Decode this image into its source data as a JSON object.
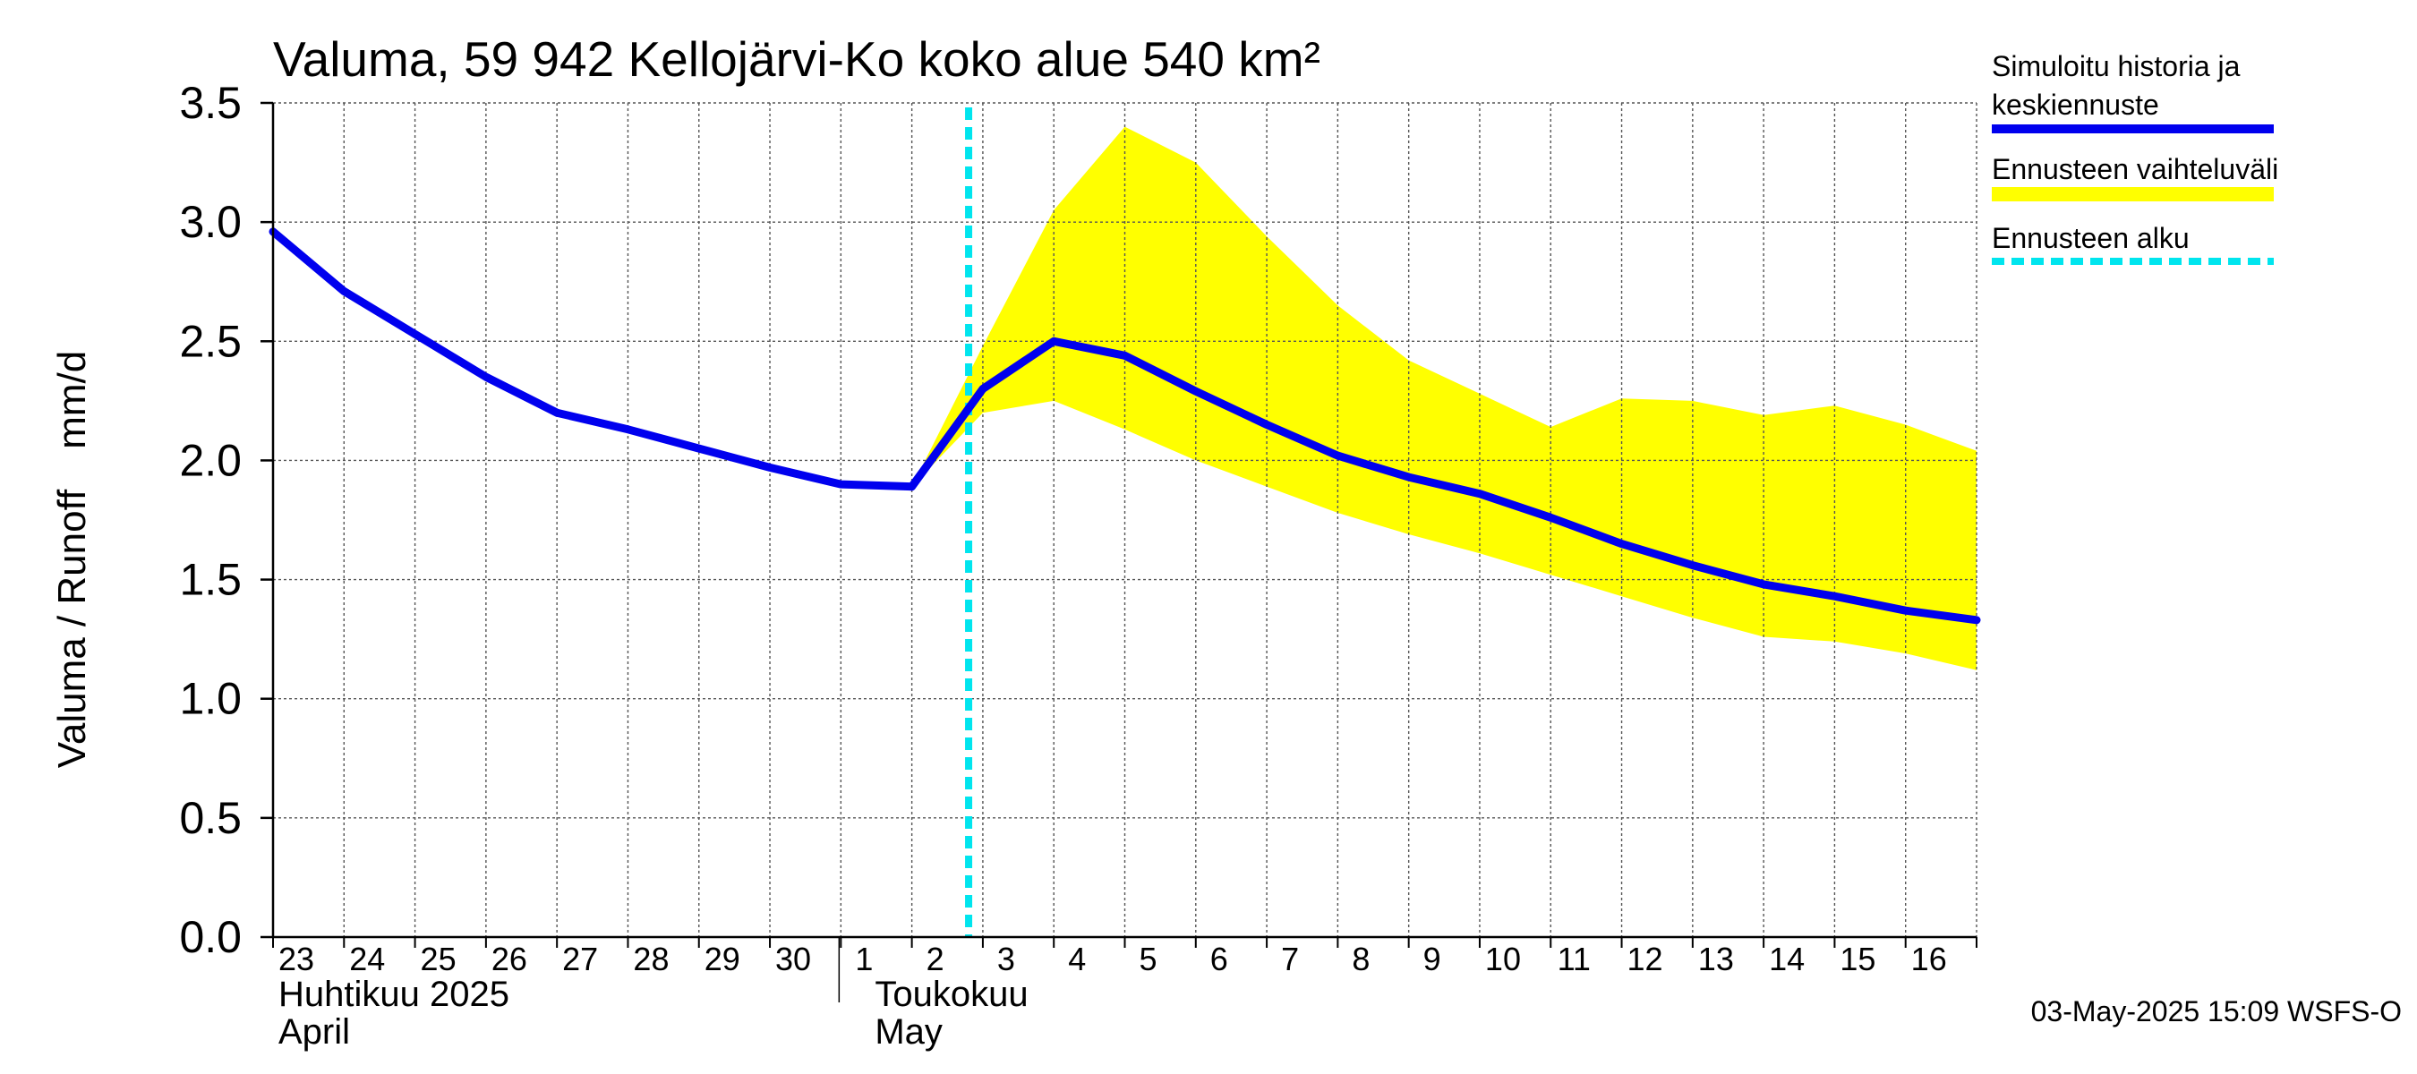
{
  "chart_data": {
    "type": "line",
    "title": "Valuma, 59 942 Kellojärvi-Ko koko alue 540 km²",
    "ylabel_fi": "Valuma / Runoff",
    "ylabel_unit": "mm/d",
    "ylim": [
      0,
      3.5
    ],
    "yticks": [
      "0.0",
      "0.5",
      "1.0",
      "1.5",
      "2.0",
      "2.5",
      "3.0",
      "3.5"
    ],
    "x_days": [
      "23",
      "24",
      "25",
      "26",
      "27",
      "28",
      "29",
      "30",
      "1",
      "2",
      "3",
      "4",
      "5",
      "6",
      "7",
      "8",
      "9",
      "10",
      "11",
      "12",
      "13",
      "14",
      "15",
      "16"
    ],
    "months": [
      {
        "line1": "Huhtikuu  2025",
        "line2": "April",
        "start_index": 0
      },
      {
        "line1": "Toukokuu",
        "line2": "May",
        "start_index": 9
      }
    ],
    "forecast_start_index": 9.8,
    "series": [
      {
        "name": "Simuloitu historia ja keskiennuste",
        "color": "#0000ee",
        "x": [
          0,
          1,
          2,
          3,
          4,
          5,
          6,
          7,
          8,
          9,
          10,
          11,
          12,
          13,
          14,
          15,
          16,
          17,
          18,
          19,
          20,
          21,
          22,
          23,
          24
        ],
        "values": [
          2.96,
          2.71,
          2.53,
          2.35,
          2.2,
          2.13,
          2.05,
          1.97,
          1.9,
          1.89,
          2.3,
          2.5,
          2.44,
          2.29,
          2.15,
          2.02,
          1.93,
          1.86,
          1.76,
          1.65,
          1.56,
          1.48,
          1.43,
          1.37,
          1.33
        ]
      }
    ],
    "band": {
      "name": "Ennusteen vaihteluväli",
      "color": "#ffff00",
      "x": [
        9,
        10,
        11,
        12,
        13,
        14,
        15,
        16,
        17,
        18,
        19,
        20,
        21,
        22,
        23,
        24
      ],
      "upper": [
        1.89,
        2.48,
        3.05,
        3.4,
        3.25,
        2.94,
        2.65,
        2.42,
        2.28,
        2.14,
        2.26,
        2.25,
        2.19,
        2.23,
        2.15,
        2.04
      ],
      "lower": [
        1.89,
        2.2,
        2.25,
        2.13,
        2.0,
        1.89,
        1.78,
        1.69,
        1.61,
        1.52,
        1.43,
        1.34,
        1.26,
        1.24,
        1.19,
        1.12
      ]
    }
  },
  "legend": {
    "item1_line1": "Simuloitu historia ja",
    "item1_line2": "keskiennuste",
    "item2": "Ennusteen vaihteluväli",
    "item3": "Ennusteen alku",
    "colors": {
      "line": "#0000ee",
      "band": "#ffff00",
      "forecast": "#00e5ee"
    }
  },
  "footer": "03-May-2025 15:09 WSFS-O"
}
